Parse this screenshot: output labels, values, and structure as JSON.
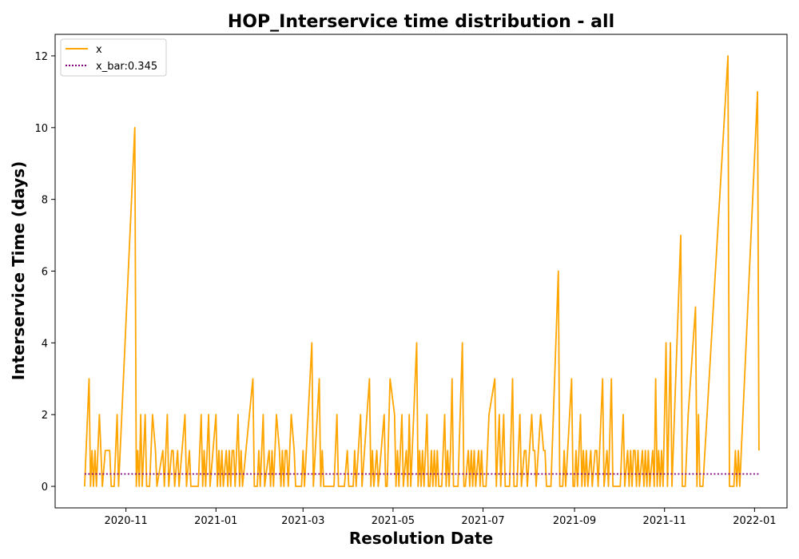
{
  "chart_data": {
    "type": "line",
    "title": "HOP_Interservice time distribution - all",
    "xlabel": "Resolution Date",
    "ylabel": "Interservice Time (days)",
    "xlim": [
      "2020-09-14",
      "2022-01-23"
    ],
    "ylim": [
      -0.6,
      12.6
    ],
    "x_ticks": [
      "2020-11",
      "2021-01",
      "2021-03",
      "2021-05",
      "2021-07",
      "2021-09",
      "2021-11",
      "2022-01"
    ],
    "y_ticks": [
      0,
      2,
      4,
      6,
      8,
      10,
      12
    ],
    "grid": false,
    "legend_position": "upper-left",
    "series": [
      {
        "name": "x",
        "color": "#FFA500",
        "style": "solid",
        "points": [
          [
            "2020-10-04",
            0
          ],
          [
            "2020-10-07",
            3
          ],
          [
            "2020-10-08",
            0
          ],
          [
            "2020-10-09",
            1
          ],
          [
            "2020-10-10",
            0
          ],
          [
            "2020-10-11",
            1
          ],
          [
            "2020-10-12",
            0
          ],
          [
            "2020-10-14",
            2
          ],
          [
            "2020-10-16",
            0
          ],
          [
            "2020-10-18",
            1
          ],
          [
            "2020-10-21",
            1
          ],
          [
            "2020-10-22",
            0
          ],
          [
            "2020-10-24",
            0
          ],
          [
            "2020-10-26",
            2
          ],
          [
            "2020-10-27",
            0
          ],
          [
            "2020-11-07",
            10
          ],
          [
            "2020-11-08",
            0
          ],
          [
            "2020-11-09",
            1
          ],
          [
            "2020-11-10",
            0
          ],
          [
            "2020-11-11",
            2
          ],
          [
            "2020-11-12",
            0
          ],
          [
            "2020-11-14",
            2
          ],
          [
            "2020-11-15",
            0
          ],
          [
            "2020-11-17",
            0
          ],
          [
            "2020-11-19",
            2
          ],
          [
            "2020-11-21",
            1
          ],
          [
            "2020-11-22",
            0
          ],
          [
            "2020-11-26",
            1
          ],
          [
            "2020-11-27",
            0
          ],
          [
            "2020-11-29",
            2
          ],
          [
            "2020-11-30",
            0
          ],
          [
            "2020-12-02",
            1
          ],
          [
            "2020-12-03",
            1
          ],
          [
            "2020-12-04",
            0
          ],
          [
            "2020-12-06",
            1
          ],
          [
            "2020-12-07",
            0
          ],
          [
            "2020-12-11",
            2
          ],
          [
            "2020-12-12",
            0
          ],
          [
            "2020-12-14",
            1
          ],
          [
            "2020-12-15",
            0
          ],
          [
            "2020-12-20",
            0
          ],
          [
            "2020-12-22",
            2
          ],
          [
            "2020-12-23",
            0
          ],
          [
            "2020-12-24",
            1
          ],
          [
            "2020-12-25",
            0
          ],
          [
            "2020-12-27",
            2
          ],
          [
            "2020-12-28",
            0
          ],
          [
            "2021-01-01",
            2
          ],
          [
            "2021-01-02",
            0
          ],
          [
            "2021-01-03",
            1
          ],
          [
            "2021-01-04",
            0
          ],
          [
            "2021-01-05",
            1
          ],
          [
            "2021-01-06",
            0
          ],
          [
            "2021-01-08",
            1
          ],
          [
            "2021-01-09",
            0
          ],
          [
            "2021-01-10",
            1
          ],
          [
            "2021-01-11",
            0
          ],
          [
            "2021-01-12",
            1
          ],
          [
            "2021-01-13",
            1
          ],
          [
            "2021-01-14",
            0
          ],
          [
            "2021-01-16",
            2
          ],
          [
            "2021-01-17",
            0
          ],
          [
            "2021-01-18",
            1
          ],
          [
            "2021-01-19",
            0
          ],
          [
            "2021-01-26",
            3
          ],
          [
            "2021-01-27",
            0
          ],
          [
            "2021-01-29",
            0
          ],
          [
            "2021-01-30",
            1
          ],
          [
            "2021-01-31",
            0
          ],
          [
            "2021-02-02",
            2
          ],
          [
            "2021-02-03",
            0
          ],
          [
            "2021-02-06",
            1
          ],
          [
            "2021-02-07",
            0
          ],
          [
            "2021-02-08",
            1
          ],
          [
            "2021-02-09",
            0
          ],
          [
            "2021-02-11",
            2
          ],
          [
            "2021-02-13",
            1
          ],
          [
            "2021-02-14",
            0
          ],
          [
            "2021-02-15",
            1
          ],
          [
            "2021-02-16",
            0
          ],
          [
            "2021-02-17",
            1
          ],
          [
            "2021-02-18",
            1
          ],
          [
            "2021-02-19",
            0
          ],
          [
            "2021-02-21",
            2
          ],
          [
            "2021-02-23",
            1
          ],
          [
            "2021-02-24",
            0
          ],
          [
            "2021-02-28",
            0
          ],
          [
            "2021-03-01",
            1
          ],
          [
            "2021-03-02",
            0
          ],
          [
            "2021-03-07",
            4
          ],
          [
            "2021-03-08",
            0
          ],
          [
            "2021-03-12",
            3
          ],
          [
            "2021-03-13",
            0
          ],
          [
            "2021-03-14",
            1
          ],
          [
            "2021-03-15",
            0
          ],
          [
            "2021-03-22",
            0
          ],
          [
            "2021-03-24",
            2
          ],
          [
            "2021-03-25",
            0
          ],
          [
            "2021-03-29",
            0
          ],
          [
            "2021-03-31",
            1
          ],
          [
            "2021-04-01",
            0
          ],
          [
            "2021-04-04",
            0
          ],
          [
            "2021-04-05",
            1
          ],
          [
            "2021-04-06",
            0
          ],
          [
            "2021-04-09",
            2
          ],
          [
            "2021-04-10",
            0
          ],
          [
            "2021-04-15",
            3
          ],
          [
            "2021-04-16",
            0
          ],
          [
            "2021-04-17",
            1
          ],
          [
            "2021-04-18",
            0
          ],
          [
            "2021-04-20",
            1
          ],
          [
            "2021-04-21",
            0
          ],
          [
            "2021-04-25",
            2
          ],
          [
            "2021-04-26",
            0
          ],
          [
            "2021-04-27",
            0
          ],
          [
            "2021-04-29",
            3
          ],
          [
            "2021-05-02",
            2
          ],
          [
            "2021-05-03",
            0
          ],
          [
            "2021-05-04",
            1
          ],
          [
            "2021-05-05",
            0
          ],
          [
            "2021-05-06",
            1
          ],
          [
            "2021-05-07",
            2
          ],
          [
            "2021-05-08",
            0
          ],
          [
            "2021-05-10",
            1
          ],
          [
            "2021-05-11",
            0
          ],
          [
            "2021-05-12",
            2
          ],
          [
            "2021-05-13",
            0
          ],
          [
            "2021-05-15",
            2
          ],
          [
            "2021-05-17",
            4
          ],
          [
            "2021-05-18",
            0
          ],
          [
            "2021-05-19",
            1
          ],
          [
            "2021-05-20",
            0
          ],
          [
            "2021-05-21",
            1
          ],
          [
            "2021-05-22",
            0
          ],
          [
            "2021-05-24",
            2
          ],
          [
            "2021-05-25",
            0
          ],
          [
            "2021-05-26",
            0
          ],
          [
            "2021-05-27",
            1
          ],
          [
            "2021-05-28",
            0
          ],
          [
            "2021-05-29",
            1
          ],
          [
            "2021-05-30",
            0
          ],
          [
            "2021-05-31",
            1
          ],
          [
            "2021-06-01",
            0
          ],
          [
            "2021-06-03",
            0
          ],
          [
            "2021-06-05",
            2
          ],
          [
            "2021-06-06",
            0
          ],
          [
            "2021-06-07",
            1
          ],
          [
            "2021-06-08",
            0
          ],
          [
            "2021-06-09",
            1
          ],
          [
            "2021-06-10",
            3
          ],
          [
            "2021-06-11",
            0
          ],
          [
            "2021-06-14",
            0
          ],
          [
            "2021-06-17",
            4
          ],
          [
            "2021-06-18",
            0
          ],
          [
            "2021-06-19",
            0
          ],
          [
            "2021-06-21",
            1
          ],
          [
            "2021-06-22",
            0
          ],
          [
            "2021-06-23",
            1
          ],
          [
            "2021-06-24",
            0
          ],
          [
            "2021-06-25",
            1
          ],
          [
            "2021-06-26",
            0
          ],
          [
            "2021-06-28",
            1
          ],
          [
            "2021-06-29",
            0
          ],
          [
            "2021-06-30",
            1
          ],
          [
            "2021-07-01",
            0
          ],
          [
            "2021-07-03",
            0
          ],
          [
            "2021-07-05",
            2
          ],
          [
            "2021-07-09",
            3
          ],
          [
            "2021-07-10",
            0
          ],
          [
            "2021-07-12",
            2
          ],
          [
            "2021-07-13",
            0
          ],
          [
            "2021-07-15",
            2
          ],
          [
            "2021-07-16",
            0
          ],
          [
            "2021-07-19",
            0
          ],
          [
            "2021-07-21",
            3
          ],
          [
            "2021-07-22",
            0
          ],
          [
            "2021-07-24",
            0
          ],
          [
            "2021-07-26",
            2
          ],
          [
            "2021-07-27",
            0
          ],
          [
            "2021-07-29",
            1
          ],
          [
            "2021-07-30",
            1
          ],
          [
            "2021-07-31",
            0
          ],
          [
            "2021-08-03",
            2
          ],
          [
            "2021-08-04",
            1
          ],
          [
            "2021-08-05",
            1
          ],
          [
            "2021-08-06",
            0
          ],
          [
            "2021-08-09",
            2
          ],
          [
            "2021-08-11",
            1
          ],
          [
            "2021-08-12",
            1
          ],
          [
            "2021-08-13",
            0
          ],
          [
            "2021-08-16",
            0
          ],
          [
            "2021-08-21",
            6
          ],
          [
            "2021-08-22",
            0
          ],
          [
            "2021-08-24",
            0
          ],
          [
            "2021-08-25",
            1
          ],
          [
            "2021-08-26",
            0
          ],
          [
            "2021-08-30",
            3
          ],
          [
            "2021-08-31",
            0
          ],
          [
            "2021-09-01",
            0
          ],
          [
            "2021-09-02",
            1
          ],
          [
            "2021-09-03",
            0
          ],
          [
            "2021-09-05",
            2
          ],
          [
            "2021-09-06",
            0
          ],
          [
            "2021-09-07",
            1
          ],
          [
            "2021-09-08",
            0
          ],
          [
            "2021-09-09",
            1
          ],
          [
            "2021-09-10",
            0
          ],
          [
            "2021-09-12",
            1
          ],
          [
            "2021-09-13",
            0
          ],
          [
            "2021-09-15",
            1
          ],
          [
            "2021-09-16",
            1
          ],
          [
            "2021-09-17",
            0
          ],
          [
            "2021-09-20",
            3
          ],
          [
            "2021-09-21",
            0
          ],
          [
            "2021-09-23",
            1
          ],
          [
            "2021-09-24",
            0
          ],
          [
            "2021-09-26",
            3
          ],
          [
            "2021-09-27",
            0
          ],
          [
            "2021-10-02",
            0
          ],
          [
            "2021-10-04",
            2
          ],
          [
            "2021-10-05",
            0
          ],
          [
            "2021-10-07",
            1
          ],
          [
            "2021-10-08",
            0
          ],
          [
            "2021-10-09",
            1
          ],
          [
            "2021-10-10",
            0
          ],
          [
            "2021-10-11",
            1
          ],
          [
            "2021-10-12",
            1
          ],
          [
            "2021-10-13",
            0
          ],
          [
            "2021-10-14",
            1
          ],
          [
            "2021-10-15",
            0
          ],
          [
            "2021-10-17",
            1
          ],
          [
            "2021-10-18",
            0
          ],
          [
            "2021-10-19",
            1
          ],
          [
            "2021-10-20",
            0
          ],
          [
            "2021-10-21",
            1
          ],
          [
            "2021-10-22",
            0
          ],
          [
            "2021-10-24",
            1
          ],
          [
            "2021-10-25",
            0
          ],
          [
            "2021-10-26",
            3
          ],
          [
            "2021-10-27",
            0
          ],
          [
            "2021-10-28",
            1
          ],
          [
            "2021-10-29",
            0
          ],
          [
            "2021-10-30",
            1
          ],
          [
            "2021-10-31",
            0
          ],
          [
            "2021-11-02",
            4
          ],
          [
            "2021-11-03",
            0
          ],
          [
            "2021-11-05",
            4
          ],
          [
            "2021-11-06",
            0
          ],
          [
            "2021-11-12",
            7
          ],
          [
            "2021-11-13",
            0
          ],
          [
            "2021-11-15",
            0
          ],
          [
            "2021-11-17",
            2
          ],
          [
            "2021-11-22",
            5
          ],
          [
            "2021-11-23",
            0
          ],
          [
            "2021-11-24",
            2
          ],
          [
            "2021-11-25",
            0
          ],
          [
            "2021-11-27",
            0
          ],
          [
            "2021-12-14",
            12
          ],
          [
            "2021-12-15",
            0
          ],
          [
            "2021-12-18",
            0
          ],
          [
            "2021-12-19",
            1
          ],
          [
            "2021-12-20",
            0
          ],
          [
            "2021-12-21",
            1
          ],
          [
            "2021-12-22",
            0
          ],
          [
            "2021-12-23",
            1
          ],
          [
            "2022-01-03",
            11
          ],
          [
            "2022-01-04",
            1
          ]
        ]
      },
      {
        "name": "x_bar:0.345",
        "color": "#800080",
        "style": "dotted",
        "points": [
          [
            "2020-10-04",
            0.345
          ],
          [
            "2022-01-04",
            0.345
          ]
        ]
      }
    ]
  }
}
